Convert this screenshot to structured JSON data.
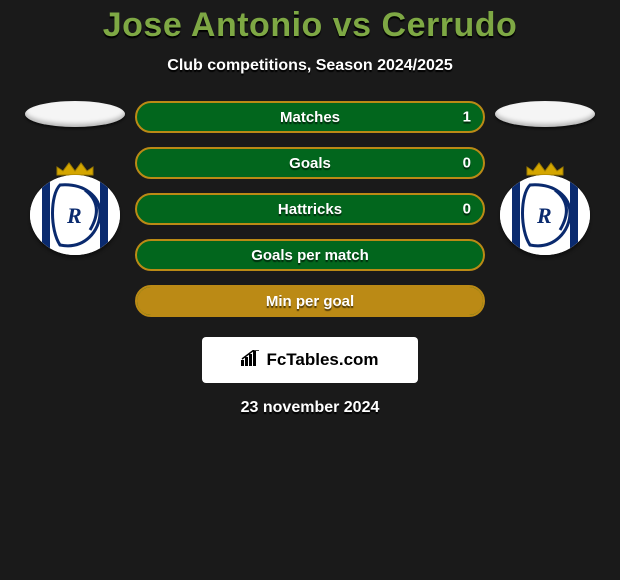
{
  "title": "Jose Antonio vs Cerrudo",
  "subtitle": "Club competitions, Season 2024/2025",
  "date_text": "23 november 2024",
  "brand_text": "FcTables.com",
  "colors": {
    "background": "#1a1a1a",
    "title": "#7ea844",
    "text": "#ffffff",
    "row_fill": "#02661d",
    "row_border": "#bb8a15",
    "badge_bg": "#ffffff",
    "badge_crown": "#d4a600",
    "badge_blue": "#0a2a6e"
  },
  "rows": [
    {
      "label": "Matches",
      "value_right": "1",
      "left_pct": 0,
      "show_value": true
    },
    {
      "label": "Goals",
      "value_right": "0",
      "left_pct": 0,
      "show_value": true
    },
    {
      "label": "Hattricks",
      "value_right": "0",
      "left_pct": 0,
      "show_value": true
    },
    {
      "label": "Goals per match",
      "value_right": "",
      "left_pct": 0,
      "show_value": false
    },
    {
      "label": "Min per goal",
      "value_right": "",
      "left_pct": 100,
      "show_value": false
    }
  ]
}
